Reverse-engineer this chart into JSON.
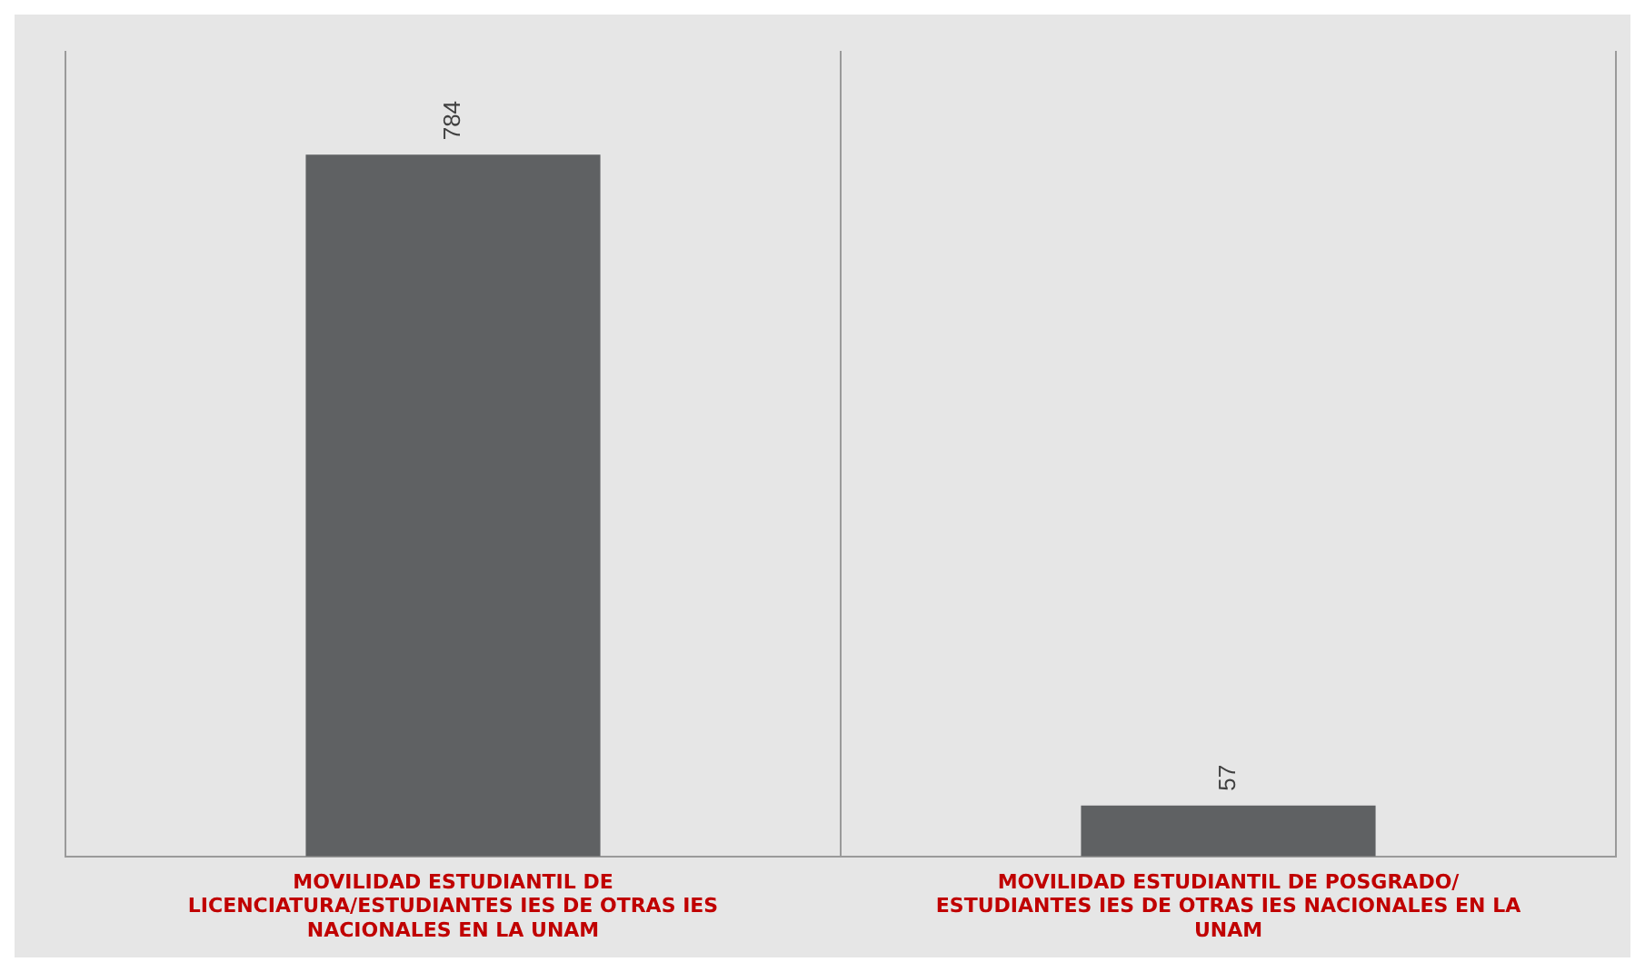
{
  "chart_data": {
    "type": "bar",
    "categories": [
      "MOVILIDAD ESTUDIANTIL DE LICENCIATURA/ESTUDIANTES IES DE OTRAS IES NACIONALES EN LA UNAM",
      "MOVILIDAD ESTUDIANTIL DE POSGRADO/ ESTUDIANTES IES DE OTRAS IES NACIONALES EN LA UNAM"
    ],
    "values": [
      784,
      57
    ],
    "color": "#5f6163",
    "data_labels": true,
    "grid": "x",
    "legend": false,
    "relative": false
  }
}
